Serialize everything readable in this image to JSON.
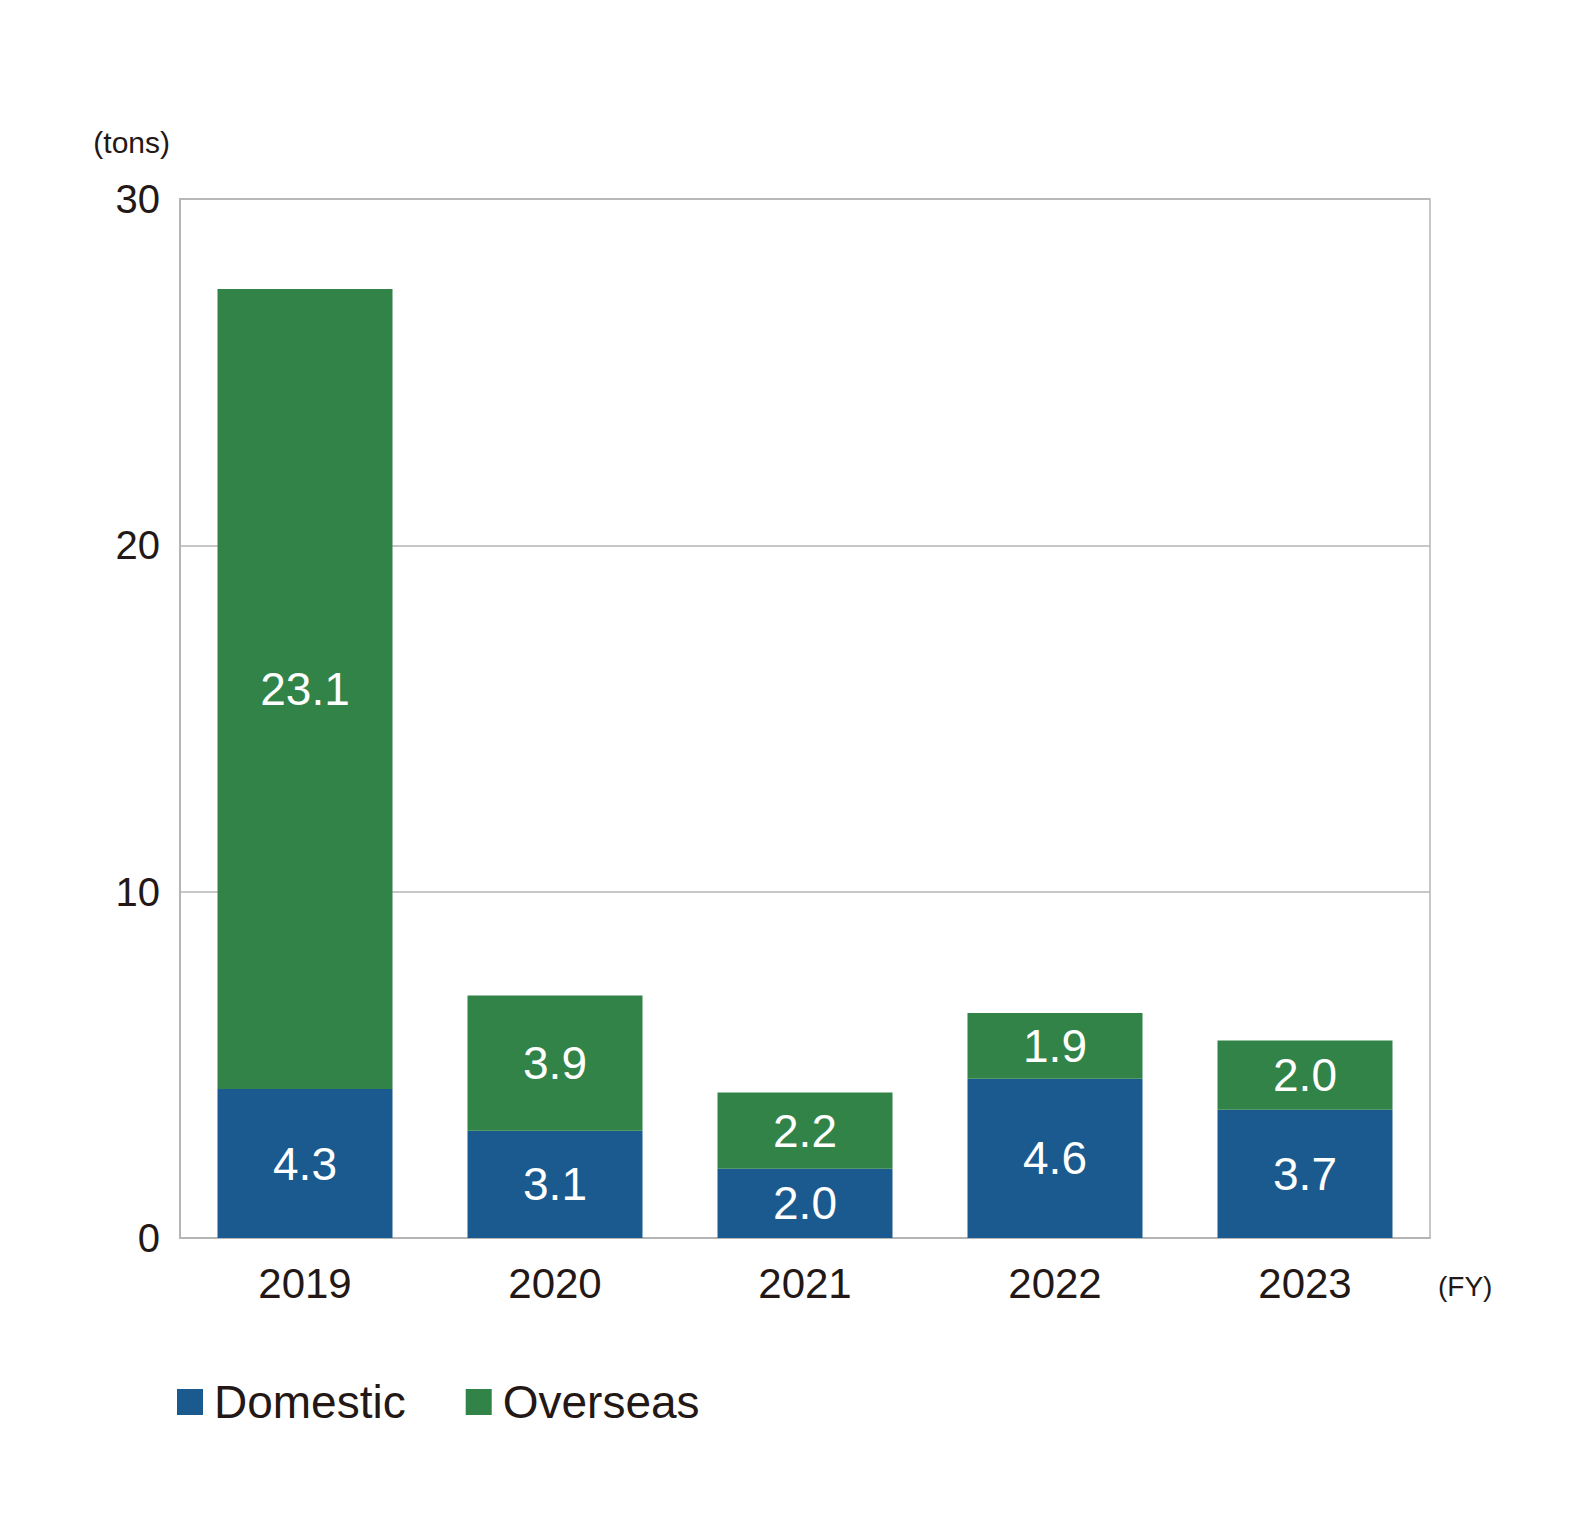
{
  "chart_data": {
    "type": "bar",
    "y_label": "(tons)",
    "x_label": "(FY)",
    "categories": [
      "2019",
      "2020",
      "2021",
      "2022",
      "2023"
    ],
    "series": [
      {
        "name": "Domestic",
        "color": "#1b5a8f",
        "values": [
          4.3,
          3.1,
          2.0,
          4.6,
          3.7
        ],
        "value_labels": [
          "4.3",
          "3.1",
          "2.0",
          "4.6",
          "3.7"
        ]
      },
      {
        "name": "Overseas",
        "color": "#318347",
        "values": [
          23.1,
          3.9,
          2.2,
          1.9,
          2.0
        ],
        "value_labels": [
          "23.1",
          "3.9",
          "2.2",
          "1.9",
          "2.0"
        ]
      }
    ],
    "ylim": [
      0,
      30
    ],
    "yticks": [
      0,
      10,
      20,
      30
    ],
    "grid": true,
    "stacked": true,
    "data_labels": true,
    "legend": "bottom left"
  }
}
